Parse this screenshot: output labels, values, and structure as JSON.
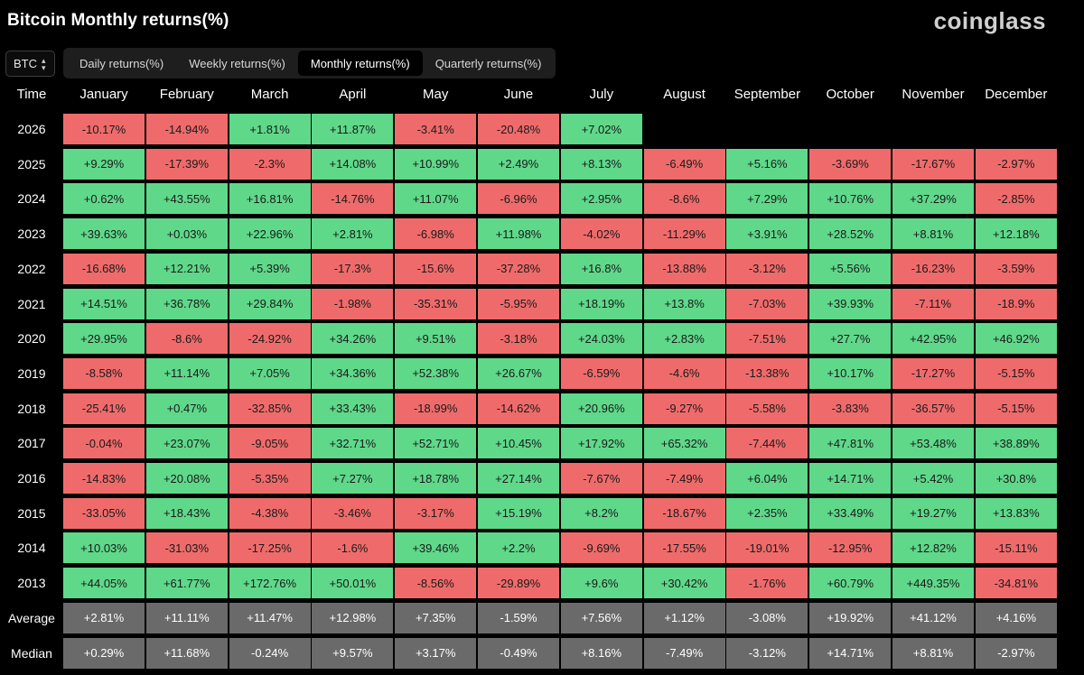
{
  "header": {
    "title": "Bitcoin Monthly returns(%)",
    "logo": "coinglass"
  },
  "asset_selector": {
    "value": "BTC"
  },
  "tabs": [
    "Daily returns(%)",
    "Weekly returns(%)",
    "Monthly returns(%)",
    "Quarterly returns(%)"
  ],
  "active_tab": "Monthly returns(%)",
  "colors": {
    "positive": "#5fd88a",
    "negative": "#ef6b6b",
    "summary": "#6a6a6a"
  },
  "table": {
    "corner": "Time",
    "months": [
      "January",
      "February",
      "March",
      "April",
      "May",
      "June",
      "July",
      "August",
      "September",
      "October",
      "November",
      "December"
    ],
    "rows": [
      {
        "year": "2026",
        "values": [
          "-10.17%",
          "-14.94%",
          "+1.81%",
          "+11.87%",
          "-3.41%",
          "-20.48%",
          "+7.02%"
        ]
      },
      {
        "year": "2025",
        "values": [
          "+9.29%",
          "-17.39%",
          "-2.3%",
          "+14.08%",
          "+10.99%",
          "+2.49%",
          "+8.13%",
          "-6.49%",
          "+5.16%",
          "-3.69%",
          "-17.67%",
          "-2.97%"
        ]
      },
      {
        "year": "2024",
        "values": [
          "+0.62%",
          "+43.55%",
          "+16.81%",
          "-14.76%",
          "+11.07%",
          "-6.96%",
          "+2.95%",
          "-8.6%",
          "+7.29%",
          "+10.76%",
          "+37.29%",
          "-2.85%"
        ]
      },
      {
        "year": "2023",
        "values": [
          "+39.63%",
          "+0.03%",
          "+22.96%",
          "+2.81%",
          "-6.98%",
          "+11.98%",
          "-4.02%",
          "-11.29%",
          "+3.91%",
          "+28.52%",
          "+8.81%",
          "+12.18%"
        ]
      },
      {
        "year": "2022",
        "values": [
          "-16.68%",
          "+12.21%",
          "+5.39%",
          "-17.3%",
          "-15.6%",
          "-37.28%",
          "+16.8%",
          "-13.88%",
          "-3.12%",
          "+5.56%",
          "-16.23%",
          "-3.59%"
        ]
      },
      {
        "year": "2021",
        "values": [
          "+14.51%",
          "+36.78%",
          "+29.84%",
          "-1.98%",
          "-35.31%",
          "-5.95%",
          "+18.19%",
          "+13.8%",
          "-7.03%",
          "+39.93%",
          "-7.11%",
          "-18.9%"
        ]
      },
      {
        "year": "2020",
        "values": [
          "+29.95%",
          "-8.6%",
          "-24.92%",
          "+34.26%",
          "+9.51%",
          "-3.18%",
          "+24.03%",
          "+2.83%",
          "-7.51%",
          "+27.7%",
          "+42.95%",
          "+46.92%"
        ]
      },
      {
        "year": "2019",
        "values": [
          "-8.58%",
          "+11.14%",
          "+7.05%",
          "+34.36%",
          "+52.38%",
          "+26.67%",
          "-6.59%",
          "-4.6%",
          "-13.38%",
          "+10.17%",
          "-17.27%",
          "-5.15%"
        ]
      },
      {
        "year": "2018",
        "values": [
          "-25.41%",
          "+0.47%",
          "-32.85%",
          "+33.43%",
          "-18.99%",
          "-14.62%",
          "+20.96%",
          "-9.27%",
          "-5.58%",
          "-3.83%",
          "-36.57%",
          "-5.15%"
        ]
      },
      {
        "year": "2017",
        "values": [
          "-0.04%",
          "+23.07%",
          "-9.05%",
          "+32.71%",
          "+52.71%",
          "+10.45%",
          "+17.92%",
          "+65.32%",
          "-7.44%",
          "+47.81%",
          "+53.48%",
          "+38.89%"
        ]
      },
      {
        "year": "2016",
        "values": [
          "-14.83%",
          "+20.08%",
          "-5.35%",
          "+7.27%",
          "+18.78%",
          "+27.14%",
          "-7.67%",
          "-7.49%",
          "+6.04%",
          "+14.71%",
          "+5.42%",
          "+30.8%"
        ]
      },
      {
        "year": "2015",
        "values": [
          "-33.05%",
          "+18.43%",
          "-4.38%",
          "-3.46%",
          "-3.17%",
          "+15.19%",
          "+8.2%",
          "-18.67%",
          "+2.35%",
          "+33.49%",
          "+19.27%",
          "+13.83%"
        ]
      },
      {
        "year": "2014",
        "values": [
          "+10.03%",
          "-31.03%",
          "-17.25%",
          "-1.6%",
          "+39.46%",
          "+2.2%",
          "-9.69%",
          "-17.55%",
          "-19.01%",
          "-12.95%",
          "+12.82%",
          "-15.11%"
        ]
      },
      {
        "year": "2013",
        "values": [
          "+44.05%",
          "+61.77%",
          "+172.76%",
          "+50.01%",
          "-8.56%",
          "-29.89%",
          "+9.6%",
          "+30.42%",
          "-1.76%",
          "+60.79%",
          "+449.35%",
          "-34.81%"
        ]
      }
    ],
    "summary_rows": [
      {
        "label": "Average",
        "values": [
          "+2.81%",
          "+11.11%",
          "+11.47%",
          "+12.98%",
          "+7.35%",
          "-1.59%",
          "+7.56%",
          "+1.12%",
          "-3.08%",
          "+19.92%",
          "+41.12%",
          "+4.16%"
        ]
      },
      {
        "label": "Median",
        "values": [
          "+0.29%",
          "+11.68%",
          "-0.24%",
          "+9.57%",
          "+3.17%",
          "-0.49%",
          "+8.16%",
          "-7.49%",
          "-3.12%",
          "+14.71%",
          "+8.81%",
          "-2.97%"
        ]
      }
    ]
  }
}
